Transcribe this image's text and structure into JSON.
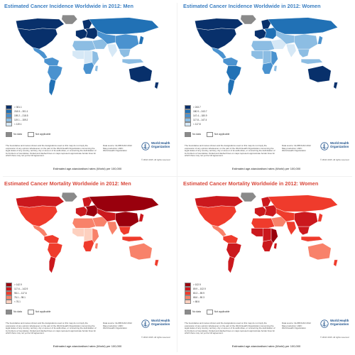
{
  "panels": [
    {
      "title": "Estimated Cancer Incidence Worldwide in 2012: Men",
      "theme": "blue",
      "palette": [
        "#08306b",
        "#2171b5",
        "#4a92cf",
        "#8cbde3",
        "#d6e8f6"
      ],
      "legend": [
        "> 301.1",
        "218.5 – 301.1",
        "159.2 – 218.5",
        "119.1 – 159.2",
        "< 119.1"
      ],
      "map_shades": {
        "na_north": 0,
        "na_main": 0,
        "greenland": 5,
        "central_am": 2,
        "sa_north": 2,
        "sa_main": 2,
        "sa_south": 1,
        "europe_w": 0,
        "europe_e": 0,
        "scandinavia": 0,
        "russia": 1,
        "middle_east": 3,
        "n_africa": 3,
        "w_africa": 4,
        "c_africa": 4,
        "e_africa": 3,
        "s_africa": 2,
        "madagascar": 3,
        "c_asia": 2,
        "india": 4,
        "china": 2,
        "se_asia": 3,
        "japan": 1,
        "indonesia": 3,
        "australia": 0,
        "nz": 0
      }
    },
    {
      "title": "Estimated Cancer Incidence Worldwide in 2012: Women",
      "theme": "blue",
      "palette": [
        "#08306b",
        "#2171b5",
        "#4a92cf",
        "#8cbde3",
        "#d6e8f6"
      ],
      "legend": [
        "> 243.7",
        "180.9 – 243.7",
        "147.4 – 180.9",
        "117.8 – 147.4",
        "< 117.8"
      ],
      "map_shades": {
        "na_north": 0,
        "na_main": 0,
        "greenland": 5,
        "central_am": 2,
        "sa_north": 2,
        "sa_main": 1,
        "sa_south": 1,
        "europe_w": 0,
        "europe_e": 1,
        "scandinavia": 0,
        "russia": 1,
        "middle_east": 4,
        "n_africa": 3,
        "w_africa": 3,
        "c_africa": 3,
        "e_africa": 2,
        "s_africa": 2,
        "madagascar": 3,
        "c_asia": 3,
        "india": 4,
        "china": 3,
        "se_asia": 3,
        "japan": 2,
        "indonesia": 3,
        "australia": 0,
        "nz": 0
      }
    },
    {
      "title": "Estimated Cancer Mortality Worldwide in 2012: Men",
      "theme": "red",
      "palette": [
        "#99000d",
        "#cb181d",
        "#ef3b2c",
        "#f8826a",
        "#fdd0bf"
      ],
      "legend": [
        "> 142.9",
        "117.6 – 142.9",
        "98.1 – 117.6",
        "76.1 – 98.1",
        "< 76.1"
      ],
      "map_shades": {
        "na_north": 1,
        "na_main": 2,
        "greenland": 5,
        "central_am": 3,
        "sa_north": 2,
        "sa_main": 2,
        "sa_south": 1,
        "europe_w": 1,
        "europe_e": 0,
        "scandinavia": 1,
        "russia": 0,
        "middle_east": 3,
        "n_africa": 3,
        "w_africa": 4,
        "c_africa": 4,
        "e_africa": 3,
        "s_africa": 2,
        "madagascar": 3,
        "c_asia": 1,
        "india": 3,
        "china": 0,
        "se_asia": 2,
        "japan": 1,
        "indonesia": 2,
        "australia": 3,
        "nz": 2
      }
    },
    {
      "title": "Estimated Cancer Mortality Worldwide in 2012: Women",
      "theme": "red",
      "palette": [
        "#99000d",
        "#cb181d",
        "#ef3b2c",
        "#f8826a",
        "#fdd0bf"
      ],
      "legend": [
        "> 102.9",
        "89.9 – 102.9",
        "80.3 – 89.9",
        "68.6 – 80.3",
        "< 68.6"
      ],
      "map_shades": {
        "na_north": 1,
        "na_main": 2,
        "greenland": 5,
        "central_am": 3,
        "sa_north": 2,
        "sa_main": 1,
        "sa_south": 1,
        "europe_w": 1,
        "europe_e": 1,
        "scandinavia": 1,
        "russia": 2,
        "middle_east": 3,
        "n_africa": 2,
        "w_africa": 1,
        "c_africa": 1,
        "e_africa": 0,
        "s_africa": 1,
        "madagascar": 1,
        "c_asia": 2,
        "india": 2,
        "china": 1,
        "se_asia": 1,
        "japan": 2,
        "indonesia": 2,
        "australia": 3,
        "nz": 2
      }
    }
  ],
  "nodata_color": "#8a8a8a",
  "na_color": "#ffffff",
  "ocean_color": "#ffffff",
  "nodata_label": "No data",
  "na_label": "Not applicable",
  "disclaimer": "The boundaries and names shown and the designations used on this map do not imply the expression of any opinion whatsoever on the part of the World Health Organization concerning the legal status of any country, territory, city or area or of its authorities, or concerning the delimitation of its frontiers or boundaries. Dotted and dashed lines on maps represent approximate border lines for which there may not yet be full agreement.",
  "source_lines": [
    "Data source: GLOBOCAN 2012",
    "Map production: IARC",
    "World Health Organization"
  ],
  "org_name": "World Health Organization",
  "copyright": "© WHO 2015. All rights reserved",
  "footer": "Estimated age-standardised rates (World) per 100,000"
}
